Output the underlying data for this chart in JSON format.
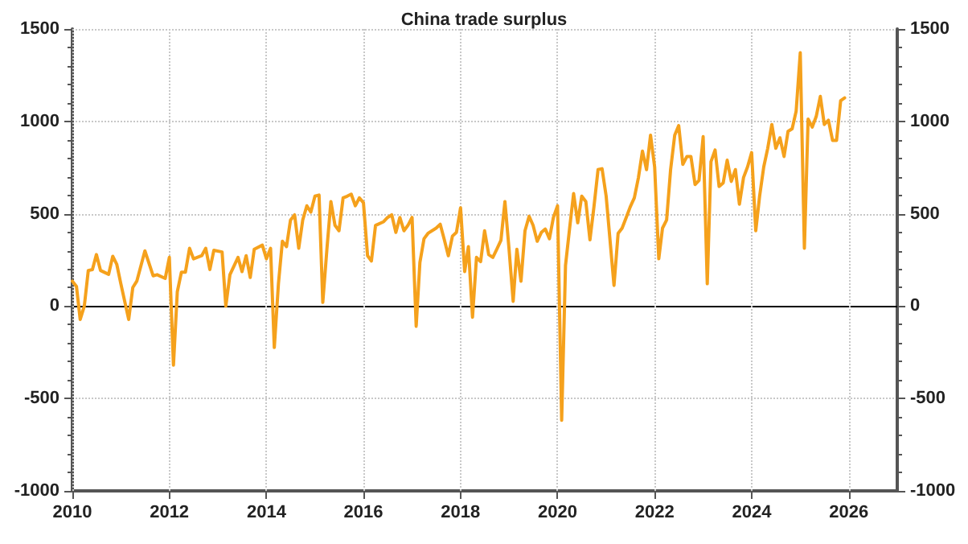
{
  "chart_data": {
    "type": "line",
    "title": "China trade surplus",
    "x": [
      "2010-01",
      "2010-02",
      "2010-03",
      "2010-04",
      "2010-05",
      "2010-06",
      "2010-07",
      "2010-08",
      "2010-10",
      "2010-11",
      "2010-12",
      "2011-01",
      "2011-03",
      "2011-04",
      "2011-05",
      "2011-07",
      "2011-09",
      "2011-10",
      "2011-12",
      "2012-01",
      "2012-02",
      "2012-03",
      "2012-04",
      "2012-05",
      "2012-06",
      "2012-07",
      "2012-09",
      "2012-10",
      "2012-11",
      "2012-12",
      "2013-02",
      "2013-03",
      "2013-04",
      "2013-06",
      "2013-07",
      "2013-08",
      "2013-09",
      "2013-10",
      "2013-12",
      "2014-01",
      "2014-02",
      "2014-03",
      "2014-04",
      "2014-05",
      "2014-06",
      "2014-07",
      "2014-08",
      "2014-09",
      "2014-10",
      "2014-11",
      "2014-12",
      "2015-01",
      "2015-02",
      "2015-03",
      "2015-04",
      "2015-05",
      "2015-06",
      "2015-07",
      "2015-08",
      "2015-09",
      "2015-10",
      "2015-11",
      "2015-12",
      "2016-01",
      "2016-02",
      "2016-03",
      "2016-04",
      "2016-06",
      "2016-07",
      "2016-08",
      "2016-09",
      "2016-10",
      "2016-11",
      "2016-12",
      "2017-01",
      "2017-02",
      "2017-03",
      "2017-04",
      "2017-05",
      "2017-07",
      "2017-08",
      "2017-09",
      "2017-10",
      "2017-11",
      "2017-12",
      "2018-01",
      "2018-02",
      "2018-03",
      "2018-04",
      "2018-05",
      "2018-06",
      "2018-07",
      "2018-08",
      "2018-09",
      "2018-10",
      "2018-11",
      "2018-12",
      "2019-01",
      "2019-02",
      "2019-03",
      "2019-04",
      "2019-05",
      "2019-06",
      "2019-07",
      "2019-08",
      "2019-09",
      "2019-10",
      "2019-11",
      "2019-12",
      "2020-01",
      "2020-02",
      "2020-03",
      "2020-04",
      "2020-05",
      "2020-06",
      "2020-07",
      "2020-08",
      "2020-09",
      "2020-10",
      "2020-11",
      "2020-12",
      "2021-01",
      "2021-03",
      "2021-04",
      "2021-05",
      "2021-06",
      "2021-07",
      "2021-08",
      "2021-09",
      "2021-10",
      "2021-11",
      "2021-12",
      "2022-01",
      "2022-02",
      "2022-03",
      "2022-04",
      "2022-05",
      "2022-06",
      "2022-07",
      "2022-08",
      "2022-09",
      "2022-10",
      "2022-11",
      "2022-12",
      "2023-01",
      "2023-02",
      "2023-03",
      "2023-04",
      "2023-05",
      "2023-06",
      "2023-07",
      "2023-08",
      "2023-09",
      "2023-10",
      "2023-11",
      "2023-12",
      "2024-01",
      "2024-02",
      "2024-03",
      "2024-04",
      "2024-05",
      "2024-06",
      "2024-07",
      "2024-08",
      "2024-09",
      "2024-10",
      "2024-11",
      "2024-12",
      "2025-01",
      "2025-02",
      "2025-03",
      "2025-04",
      "2025-05",
      "2025-06",
      "2025-07",
      "2025-08",
      "2025-09",
      "2025-10",
      "2025-11",
      "2025-12"
    ],
    "series": [
      {
        "color": "#f5a11c",
        "values": [
          135,
          106,
          -72,
          0,
          193,
          198,
          279,
          193,
          172,
          270,
          227,
          121,
          -72,
          101,
          135,
          299,
          164,
          170,
          150,
          264,
          -319,
          78,
          184,
          184,
          313,
          256,
          273,
          313,
          198,
          302,
          293,
          0,
          170,
          264,
          187,
          273,
          155,
          308,
          330,
          256,
          313,
          -224,
          120,
          351,
          322,
          466,
          494,
          313,
          466,
          543,
          509,
          595,
          601,
          20,
          308,
          566,
          437,
          408,
          586,
          595,
          606,
          543,
          586,
          560,
          273,
          244,
          437,
          457,
          480,
          494,
          399,
          480,
          408,
          437,
          480,
          -109,
          236,
          365,
          394,
          422,
          443,
          359,
          273,
          379,
          399,
          532,
          187,
          322,
          -60,
          264,
          241,
          408,
          279,
          264,
          308,
          356,
          566,
          308,
          26,
          308,
          135,
          408,
          486,
          437,
          351,
          399,
          417,
          365,
          480,
          543,
          -618,
          221,
          422,
          609,
          451,
          595,
          566,
          359,
          537,
          739,
          744,
          595,
          112,
          394,
          422,
          480,
          537,
          586,
          696,
          839,
          739,
          925,
          753,
          256,
          422,
          466,
          739,
          925,
          977,
          767,
          810,
          810,
          658,
          681,
          917,
          121,
          782,
          845,
          647,
          667,
          790,
          675,
          739,
          552,
          696,
          753,
          831,
          408,
          595,
          753,
          854,
          983,
          854,
          911,
          810,
          946,
          960,
          1055,
          1371,
          313,
          1012,
          969,
          1026,
          1135,
          983,
          1006,
          897,
          897,
          1112,
          1127
        ]
      }
    ],
    "xlim": [
      "2010",
      "2027"
    ],
    "xticks": [
      "2010",
      "2012",
      "2014",
      "2016",
      "2018",
      "2020",
      "2022",
      "2024",
      "2026"
    ],
    "ylim": [
      -1000,
      1500
    ],
    "yticks": [
      -1000,
      -500,
      0,
      500,
      1000,
      1500
    ],
    "y2lim": [
      -1000,
      1500
    ],
    "y2ticks": [
      -1000,
      -500,
      0,
      500,
      1000,
      1500
    ],
    "ref_lines": [
      {
        "axis": "y",
        "value": 0,
        "color": "#000000"
      }
    ],
    "grid": true,
    "marker": "none",
    "line_style": "solid"
  }
}
